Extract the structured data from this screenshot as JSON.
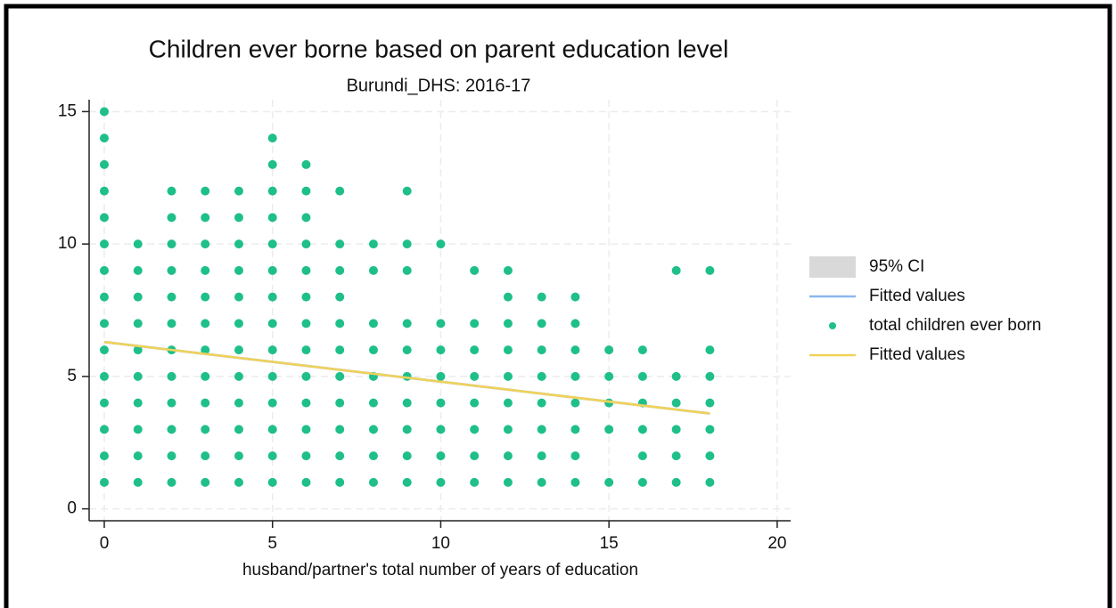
{
  "chart_data": {
    "type": "scatter",
    "title": "Children ever borne based on parent education level",
    "subtitle": "Burundi_DHS: 2016-17",
    "x_label": "husband/partner's total number of years of education",
    "xlim": [
      -0.45,
      20.4
    ],
    "ylim": [
      -0.45,
      15.45
    ],
    "xticks": [
      0,
      5,
      10,
      15,
      20
    ],
    "yticks": [
      0,
      5,
      10,
      15
    ],
    "grid": true,
    "legend": "right",
    "series": [
      {
        "name": "95% CI",
        "type": "area",
        "color": "#d9d9d9",
        "x": [
          0,
          18
        ],
        "lower": [
          6.25,
          3.55
        ],
        "upper": [
          6.35,
          3.65
        ]
      },
      {
        "name": "Fitted values",
        "type": "line",
        "color": "#8ab8ec",
        "x": [
          0,
          18
        ],
        "values": [
          6.3,
          3.6
        ]
      },
      {
        "name": "total children ever born",
        "type": "scatter",
        "color": "#1fbf8a",
        "x": [
          0,
          0,
          0,
          0,
          0,
          0,
          0,
          0,
          0,
          0,
          0,
          0,
          0,
          0,
          0,
          1,
          1,
          1,
          1,
          1,
          1,
          1,
          1,
          1,
          1,
          2,
          2,
          2,
          2,
          2,
          2,
          2,
          2,
          2,
          2,
          2,
          2,
          3,
          3,
          3,
          3,
          3,
          3,
          3,
          3,
          3,
          3,
          3,
          3,
          4,
          4,
          4,
          4,
          4,
          4,
          4,
          4,
          4,
          4,
          4,
          4,
          5,
          5,
          5,
          5,
          5,
          5,
          5,
          5,
          5,
          5,
          5,
          5,
          5,
          5,
          6,
          6,
          6,
          6,
          6,
          6,
          6,
          6,
          6,
          6,
          6,
          6,
          6,
          7,
          7,
          7,
          7,
          7,
          7,
          7,
          7,
          7,
          7,
          7,
          8,
          8,
          8,
          8,
          8,
          8,
          8,
          8,
          8,
          9,
          9,
          9,
          9,
          9,
          9,
          9,
          9,
          9,
          9,
          10,
          10,
          10,
          10,
          10,
          10,
          10,
          10,
          11,
          11,
          11,
          11,
          11,
          11,
          11,
          11,
          12,
          12,
          12,
          12,
          12,
          12,
          12,
          12,
          12,
          13,
          13,
          13,
          13,
          13,
          13,
          13,
          13,
          14,
          14,
          14,
          14,
          14,
          14,
          14,
          14,
          15,
          15,
          15,
          15,
          15,
          16,
          16,
          16,
          16,
          16,
          16,
          17,
          17,
          17,
          17,
          17,
          17,
          18,
          18,
          18,
          18,
          18,
          18,
          18
        ],
        "values": [
          1,
          2,
          3,
          4,
          5,
          6,
          7,
          8,
          9,
          10,
          11,
          12,
          13,
          14,
          15,
          1,
          2,
          3,
          4,
          5,
          6,
          7,
          8,
          9,
          10,
          1,
          2,
          3,
          4,
          5,
          6,
          7,
          8,
          9,
          10,
          11,
          12,
          1,
          2,
          3,
          4,
          5,
          6,
          7,
          8,
          9,
          10,
          11,
          12,
          1,
          2,
          3,
          4,
          5,
          6,
          7,
          8,
          9,
          10,
          11,
          12,
          1,
          2,
          3,
          4,
          5,
          6,
          7,
          8,
          9,
          10,
          11,
          12,
          13,
          14,
          1,
          2,
          3,
          4,
          5,
          6,
          7,
          8,
          9,
          10,
          11,
          12,
          13,
          1,
          2,
          3,
          4,
          5,
          6,
          7,
          8,
          9,
          10,
          12,
          1,
          2,
          3,
          4,
          5,
          6,
          7,
          9,
          10,
          1,
          2,
          3,
          4,
          5,
          6,
          7,
          9,
          10,
          12,
          1,
          2,
          3,
          4,
          5,
          6,
          7,
          10,
          1,
          2,
          3,
          4,
          5,
          6,
          7,
          9,
          1,
          2,
          3,
          4,
          5,
          6,
          7,
          8,
          9,
          1,
          2,
          3,
          4,
          5,
          6,
          7,
          8,
          1,
          2,
          3,
          4,
          5,
          6,
          7,
          8,
          1,
          3,
          4,
          5,
          6,
          1,
          2,
          3,
          4,
          5,
          6,
          1,
          2,
          3,
          4,
          5,
          9,
          1,
          2,
          3,
          4,
          5,
          6,
          9
        ]
      },
      {
        "name": "Fitted values",
        "type": "line",
        "color": "#f0d258",
        "x": [
          0,
          18
        ],
        "values": [
          6.3,
          3.6
        ]
      }
    ]
  }
}
